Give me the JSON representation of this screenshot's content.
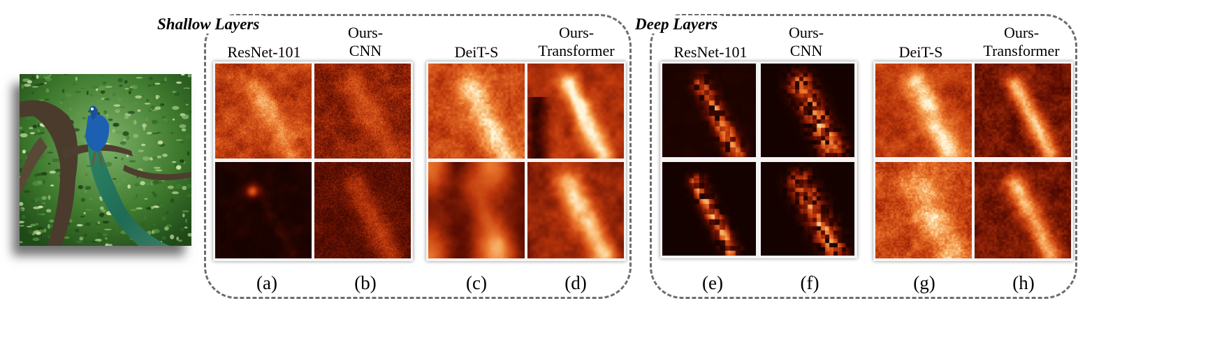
{
  "figure": {
    "groups": [
      {
        "id": "shallow",
        "title": "Shallow Layers"
      },
      {
        "id": "deep",
        "title": "Deep Layers"
      }
    ],
    "columns": [
      {
        "id": "a",
        "line1": "ResNet-101",
        "line2": "",
        "sublabel": "(a)"
      },
      {
        "id": "b",
        "line1": "Ours-",
        "line2": "CNN",
        "sublabel": "(b)"
      },
      {
        "id": "c",
        "line1": "DeiT-S",
        "line2": "",
        "sublabel": "(c)"
      },
      {
        "id": "d",
        "line1": "Ours-",
        "line2": "Transformer",
        "sublabel": "(d)"
      },
      {
        "id": "e",
        "line1": "ResNet-101",
        "line2": "",
        "sublabel": "(e)"
      },
      {
        "id": "f",
        "line1": "Ours-",
        "line2": "CNN",
        "sublabel": "(f)"
      },
      {
        "id": "g",
        "line1": "DeiT-S",
        "line2": "",
        "sublabel": "(g)"
      },
      {
        "id": "h",
        "line1": "Ours-",
        "line2": "Transformer",
        "sublabel": "(h)"
      }
    ],
    "colors": {
      "dashed_border": "#6d6d6d",
      "heatmap_dark": "#120100",
      "heatmap_mid": "#c23d0c",
      "heatmap_bright": "#fff0cf"
    }
  }
}
